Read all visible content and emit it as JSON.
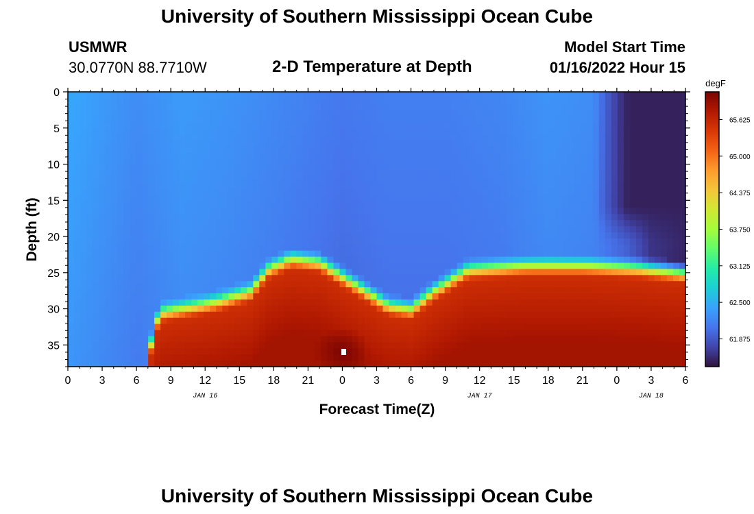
{
  "page": {
    "title_top": "University of Southern Mississippi Ocean Cube",
    "title_bottom": "University of Southern Mississippi Ocean Cube",
    "station_id": "USMWR",
    "location": "30.0770N  88.7710W",
    "plot_title": "2-D Temperature at Depth",
    "model_label": "Model Start Time",
    "model_time": "01/16/2022 Hour 15"
  },
  "chart_data": {
    "type": "heatmap",
    "title": "2-D Temperature at Depth",
    "xlabel": "Forecast Time(Z)",
    "ylabel": "Depth (ft)",
    "xlim": [
      0,
      54
    ],
    "ylim": [
      0,
      38
    ],
    "x_ticks": [
      0,
      3,
      6,
      9,
      12,
      15,
      18,
      21,
      24,
      27,
      30,
      33,
      36,
      39,
      42,
      45,
      48,
      51,
      54
    ],
    "x_tick_labels": [
      "0",
      "3",
      "6",
      "9",
      "12",
      "15",
      "18",
      "21",
      "0",
      "3",
      "6",
      "9",
      "12",
      "15",
      "18",
      "21",
      "0",
      "3",
      "6"
    ],
    "y_ticks": [
      0,
      5,
      10,
      15,
      20,
      25,
      30,
      35
    ],
    "y_tick_labels": [
      "0",
      "5",
      "10",
      "15",
      "20",
      "25",
      "30",
      "35"
    ],
    "date_labels": [
      {
        "x": 12,
        "text": "JAN 16"
      },
      {
        "x": 36,
        "text": "JAN 17"
      },
      {
        "x": 51,
        "text": "JAN 18"
      }
    ],
    "colorbar": {
      "units": "degF",
      "range": [
        61.4,
        66.1
      ],
      "tick_values": [
        65.625,
        65.0,
        64.375,
        63.75,
        63.125,
        62.5,
        61.875
      ],
      "tick_labels": [
        "65.625",
        "65.000",
        "64.375",
        "63.750",
        "63.125",
        "62.500",
        "61.875"
      ],
      "colors": [
        "#30123b",
        "#4145ab",
        "#4675ed",
        "#39a2fc",
        "#1bcfd4",
        "#24eca6",
        "#61fc6c",
        "#a4fc3b",
        "#d1e834",
        "#f3c63a",
        "#fe9b2d",
        "#f36315",
        "#d93806",
        "#b11901",
        "#7a0402"
      ]
    },
    "field_model": {
      "surface_temp_time_profile": [
        [
          0,
          62.45
        ],
        [
          6,
          62.25
        ],
        [
          10,
          62.35
        ],
        [
          14,
          62.3
        ],
        [
          19,
          62.2
        ],
        [
          24,
          62.1
        ],
        [
          28,
          62.15
        ],
        [
          33,
          62.15
        ],
        [
          38,
          62.2
        ],
        [
          42,
          62.3
        ],
        [
          46,
          62.25
        ],
        [
          49,
          62.0
        ],
        [
          51,
          61.7
        ],
        [
          54,
          61.6
        ]
      ],
      "thermocline_depth_profile": [
        [
          0,
          60
        ],
        [
          6,
          60
        ],
        [
          7,
          37
        ],
        [
          8,
          31
        ],
        [
          13,
          29.5
        ],
        [
          16,
          28
        ],
        [
          17.5,
          25
        ],
        [
          19.5,
          23.5
        ],
        [
          22,
          24
        ],
        [
          25,
          27
        ],
        [
          28,
          30
        ],
        [
          30,
          30.5
        ],
        [
          32,
          28
        ],
        [
          35,
          25
        ],
        [
          40,
          24.5
        ],
        [
          45,
          24.5
        ],
        [
          50,
          24.8
        ],
        [
          54,
          25.5
        ]
      ],
      "bottom_temp": 65.85,
      "interior_warm_temp": 65.5,
      "cold_pocket": {
        "x": [
          48,
          54
        ],
        "depth": [
          0,
          18
        ],
        "temp": 61.5
      },
      "hot_spot": {
        "x": 24,
        "depth": 36,
        "temp": 66.1
      }
    }
  }
}
